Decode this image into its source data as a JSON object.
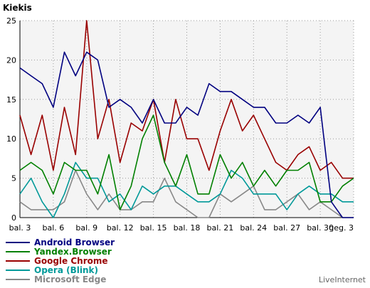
{
  "chart_data": {
    "type": "line",
    "title": "Kiekis",
    "xlabel": "",
    "ylabel": "",
    "ylim": [
      0,
      25
    ],
    "yticks": [
      0,
      5,
      10,
      15,
      20,
      25
    ],
    "grid": true,
    "legend_position": "bottom-left",
    "x_tick_labels": [
      "bal. 3",
      "bal. 6",
      "bal. 9",
      "bal. 12",
      "bal. 15",
      "bal. 18",
      "bal. 21",
      "bal. 24",
      "bal. 27",
      "bal. 30",
      "geg. 3"
    ],
    "series": [
      {
        "name": "Android Browser",
        "color": "#000080",
        "values": [
          19,
          18,
          17,
          14,
          21,
          18,
          21,
          20,
          14,
          15,
          14,
          12,
          15,
          12,
          12,
          14,
          13,
          17,
          16,
          16,
          15,
          14,
          14,
          12,
          12,
          13,
          12,
          14,
          2,
          0,
          0
        ]
      },
      {
        "name": "Yandex.Browser",
        "color": "#008000",
        "values": [
          6,
          7,
          6,
          3,
          7,
          6,
          6,
          3,
          8,
          1,
          4,
          10,
          13,
          7,
          4,
          8,
          3,
          3,
          8,
          5,
          7,
          4,
          6,
          4,
          6,
          6,
          7,
          2,
          2,
          4,
          5
        ]
      },
      {
        "name": "Google Chrome",
        "color": "#990000",
        "values": [
          13,
          8,
          13,
          6,
          14,
          8,
          25,
          10,
          15,
          7,
          12,
          11,
          15,
          7,
          15,
          10,
          10,
          6,
          11,
          15,
          11,
          13,
          10,
          7,
          6,
          8,
          9,
          6,
          7,
          5,
          5
        ]
      },
      {
        "name": "Opera (Blink)",
        "color": "#009999",
        "values": [
          3,
          5,
          2,
          0,
          3,
          7,
          5,
          5,
          2,
          3,
          1,
          4,
          3,
          4,
          4,
          3,
          2,
          2,
          3,
          6,
          5,
          3,
          3,
          3,
          1,
          3,
          4,
          3,
          3,
          2,
          2
        ]
      },
      {
        "name": "Microsoft Edge",
        "color": "#888888",
        "values": [
          2,
          1,
          1,
          1,
          2,
          6,
          3,
          1,
          3,
          1,
          1,
          2,
          2,
          5,
          2,
          1,
          0,
          0,
          3,
          2,
          3,
          4,
          1,
          1,
          2,
          3,
          1,
          2,
          1,
          0,
          0
        ]
      }
    ]
  },
  "legend": {
    "items": [
      "Android Browser",
      "Yandex.Browser",
      "Google Chrome",
      "Opera (Blink)",
      "Microsoft Edge"
    ]
  },
  "footer": {
    "brand": "LiveInternet"
  }
}
